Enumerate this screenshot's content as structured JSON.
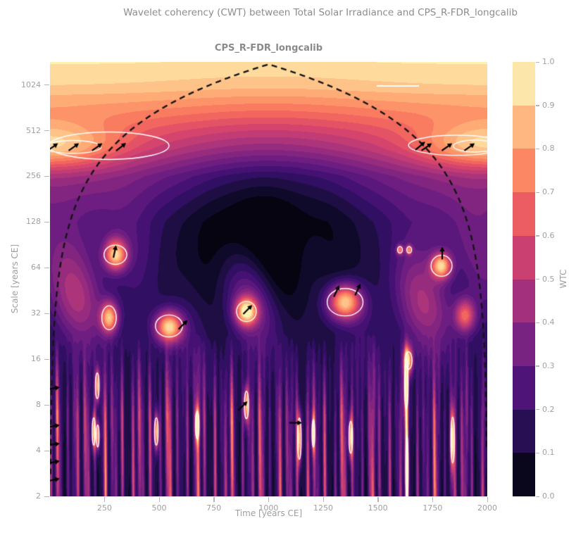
{
  "figure": {
    "suptitle": "Wavelet coherency (CWT) between Total Solar Irradiance and CPS_R-FDR_longcalib",
    "background_color": "#ffffff",
    "title_color": "#8c8c8c",
    "tick_label_color": "#a0a0a0"
  },
  "chart_data": {
    "type": "heatmap",
    "subtype": "wavelet-coherence",
    "title": "CPS_R-FDR_longcalib",
    "xlabel": "Time [years CE]",
    "ylabel": "Scale [years CE]",
    "colorbar_label": "WTC",
    "x_range": [
      1,
      2000
    ],
    "y_range": [
      2,
      1450
    ],
    "y_scale": "log2",
    "grid": false,
    "levels": 20,
    "x_ticks": [
      {
        "value": 250,
        "label": "250"
      },
      {
        "value": 500,
        "label": "500"
      },
      {
        "value": 750,
        "label": "750"
      },
      {
        "value": 1000,
        "label": "1000"
      },
      {
        "value": 1250,
        "label": "1250"
      },
      {
        "value": 1500,
        "label": "1500"
      },
      {
        "value": 1750,
        "label": "1750"
      },
      {
        "value": 2000,
        "label": "2000"
      }
    ],
    "y_ticks": [
      {
        "value": 1024,
        "label": "1024"
      },
      {
        "value": 512,
        "label": "512"
      },
      {
        "value": 256,
        "label": "256"
      },
      {
        "value": 128,
        "label": "128"
      },
      {
        "value": 64,
        "label": "64"
      },
      {
        "value": 32,
        "label": "32"
      },
      {
        "value": 16,
        "label": "16"
      },
      {
        "value": 8,
        "label": "8"
      },
      {
        "value": 4,
        "label": "4"
      },
      {
        "value": 2,
        "label": "2"
      }
    ],
    "colorbar_ticks": [
      {
        "value": 1.0,
        "label": "1.0"
      },
      {
        "value": 0.9,
        "label": "0.9"
      },
      {
        "value": 0.8,
        "label": "0.8"
      },
      {
        "value": 0.7,
        "label": "0.7"
      },
      {
        "value": 0.6,
        "label": "0.6"
      },
      {
        "value": 0.5,
        "label": "0.5"
      },
      {
        "value": 0.4,
        "label": "0.4"
      },
      {
        "value": 0.3,
        "label": "0.3"
      },
      {
        "value": 0.2,
        "label": "0.2"
      },
      {
        "value": 0.1,
        "label": "0.1"
      },
      {
        "value": 0.0,
        "label": "0.0"
      }
    ],
    "colormap_name": "magma",
    "colormap_stops": [
      "#000004",
      "#140e36",
      "#3b0f70",
      "#641a80",
      "#8c2981",
      "#b73779",
      "#de4968",
      "#f7705c",
      "#fe9f6d",
      "#fecf92",
      "#fcfdbf"
    ],
    "colorbar_bin_colors": [
      "#0a071d",
      "#280f53",
      "#4f1478",
      "#782281",
      "#a2307d",
      "#ca4071",
      "#eb5d62",
      "#fb8765",
      "#feb780",
      "#fde6a9"
    ],
    "contour_color": "#ffffff",
    "coi_color": "#141414",
    "arrow_color": "#000000",
    "coi": {
      "type": "cone",
      "scale_factor_per_year": 1.4,
      "t_start": 1,
      "t_end": 2000,
      "dash": [
        8,
        6
      ]
    },
    "field_model": {
      "base_profile_log2scale_vs_wtc": [
        [
          1,
          0.08
        ],
        [
          3,
          0.1
        ],
        [
          4,
          0.14
        ],
        [
          5,
          0.2
        ],
        [
          6,
          0.24
        ],
        [
          7,
          0.3
        ],
        [
          8,
          0.42
        ],
        [
          8.6,
          0.58
        ],
        [
          9,
          0.66
        ],
        [
          9.5,
          0.78
        ],
        [
          10,
          0.9
        ],
        [
          10.55,
          0.96
        ]
      ],
      "dark_core": {
        "t": 1000,
        "t_sigma": 520,
        "o": 7.0,
        "o_sigma": 1.9,
        "amp": 0.35
      },
      "edge_band_400yr": {
        "o": 8.67,
        "o_sigma": 0.5,
        "t_sigma": 300,
        "amp": 0.32
      },
      "midscale_wobble": {
        "amp": 0.28,
        "o": 5.3,
        "o_sigma": 1.4
      },
      "stripes": {
        "amp": 0.95,
        "power": 2.2,
        "fade_lo_oct": 2.8,
        "fade_hi_oct": 4.6,
        "components": [
          [
            0.251,
            0.3
          ],
          [
            0.149,
            2.1
          ],
          [
            0.087,
            4.9
          ],
          [
            0.047,
            1.0
          ]
        ]
      },
      "coherent_blobs_t_scale_amp_tsig_osig": [
        [
          300,
          78,
          0.72,
          50,
          0.33
        ],
        [
          271,
          30,
          0.68,
          38,
          0.33
        ],
        [
          545,
          26,
          0.78,
          60,
          0.33
        ],
        [
          899,
          33,
          0.75,
          48,
          0.3
        ],
        [
          1350,
          38,
          0.78,
          75,
          0.38
        ],
        [
          1791,
          66,
          0.7,
          45,
          0.28
        ],
        [
          1640,
          15.7,
          0.72,
          20,
          0.3
        ],
        [
          1601,
          84,
          0.5,
          14,
          0.1
        ],
        [
          1643,
          84,
          0.5,
          14,
          0.1
        ],
        [
          1900,
          31,
          0.5,
          45,
          0.35
        ],
        [
          217,
          10.7,
          0.75,
          10,
          0.35
        ],
        [
          201,
          5.3,
          0.75,
          9,
          0.38
        ],
        [
          219,
          5.0,
          0.7,
          8,
          0.3
        ],
        [
          487,
          5.3,
          0.75,
          10,
          0.38
        ],
        [
          674,
          5.9,
          0.75,
          10,
          0.38
        ],
        [
          899,
          8.0,
          0.75,
          11,
          0.38
        ],
        [
          1141,
          4.8,
          0.78,
          10,
          0.55
        ],
        [
          1205,
          5.2,
          0.7,
          8,
          0.38
        ],
        [
          1376,
          4.9,
          0.75,
          10,
          0.44
        ],
        [
          1630,
          11,
          0.78,
          10,
          0.68
        ],
        [
          1633,
          3.0,
          0.78,
          7,
          0.9
        ],
        [
          1842,
          4.7,
          0.78,
          10,
          0.62
        ]
      ]
    },
    "significance_contours": {
      "level": 0.8,
      "ellipses_t_scale_rt_roct": [
        [
          270,
          407,
          275,
          0.3
        ],
        [
          105,
          400,
          130,
          0.14
        ],
        [
          1860,
          410,
          220,
          0.22
        ],
        [
          1945,
          405,
          100,
          0.13
        ],
        [
          300,
          78,
          52,
          0.21
        ],
        [
          271,
          30,
          33,
          0.26
        ],
        [
          545,
          26.5,
          62,
          0.24
        ],
        [
          899,
          33,
          45,
          0.22
        ],
        [
          1350,
          38,
          82,
          0.3
        ],
        [
          1791,
          66,
          48,
          0.23
        ],
        [
          1640,
          15.7,
          16,
          0.19
        ],
        [
          1601,
          84,
          11,
          0.07
        ],
        [
          1643,
          84,
          11,
          0.07
        ],
        [
          217,
          10.7,
          8,
          0.28
        ],
        [
          201,
          5.35,
          7,
          0.3
        ],
        [
          219,
          5.0,
          6,
          0.24
        ],
        [
          487,
          5.35,
          8,
          0.3
        ],
        [
          674,
          5.9,
          8,
          0.3
        ],
        [
          899,
          8.0,
          9,
          0.3
        ],
        [
          1141,
          4.8,
          8,
          0.45
        ],
        [
          1205,
          5.2,
          6,
          0.3
        ],
        [
          1376,
          4.9,
          8,
          0.35
        ],
        [
          1630,
          11,
          8,
          0.55
        ],
        [
          1633,
          3.0,
          5,
          0.75
        ],
        [
          1842,
          4.7,
          8,
          0.5
        ]
      ],
      "segments_t1_s1_t2_s2": [
        [
          1494,
          1010,
          1688,
          1010
        ]
      ]
    },
    "phase_arrows_t_scale_deg": [
      [
        14,
        400,
        35
      ],
      [
        110,
        400,
        35
      ],
      [
        217,
        400,
        35
      ],
      [
        326,
        400,
        38
      ],
      [
        1694,
        407,
        40
      ],
      [
        1723,
        400,
        35
      ],
      [
        1816,
        400,
        35
      ],
      [
        1919,
        400,
        35
      ],
      [
        297,
        82,
        78
      ],
      [
        609,
        27,
        45
      ],
      [
        905,
        34,
        45
      ],
      [
        1311,
        45,
        65
      ],
      [
        1408,
        46,
        65
      ],
      [
        1794,
        80,
        90
      ],
      [
        883,
        7.9,
        45
      ],
      [
        1124,
        6.1,
        0
      ],
      [
        17,
        10.3,
        10
      ],
      [
        17,
        5.8,
        10
      ],
      [
        17,
        4.4,
        8
      ],
      [
        17,
        3.36,
        10
      ],
      [
        17,
        2.57,
        12
      ]
    ]
  }
}
